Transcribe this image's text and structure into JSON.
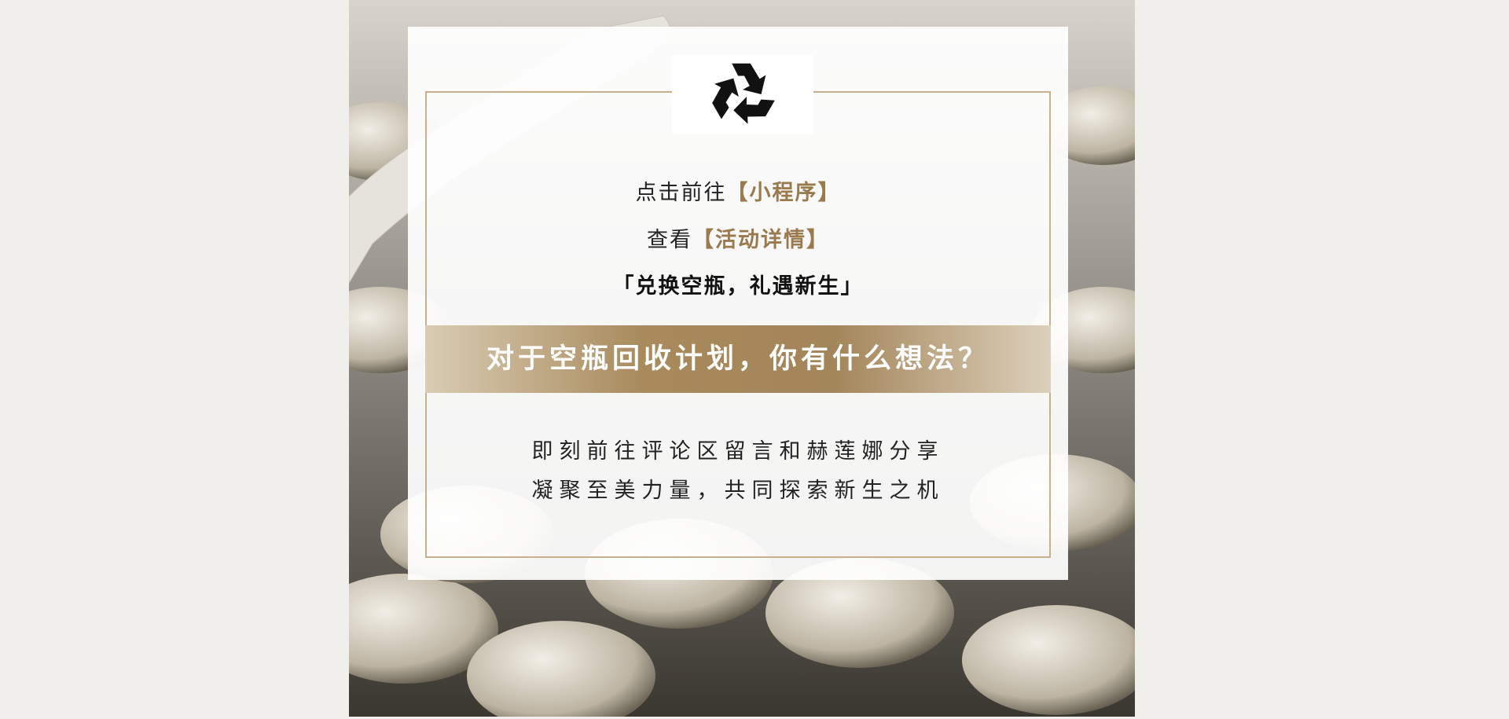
{
  "header": {
    "lines": [
      {
        "text": "点击前往",
        "highlight": "【小程序】"
      },
      {
        "text": "查看",
        "highlight": "【活动详情】"
      },
      {
        "text": "「兑换空瓶，礼遇新生」"
      }
    ]
  },
  "banner": {
    "question": "对于空瓶回收计划，你有什么想法？"
  },
  "body": {
    "lines": [
      "即刻前往评论区留言和赫莲娜分享",
      "凝聚至美力量，共同探索新生之机"
    ]
  }
}
